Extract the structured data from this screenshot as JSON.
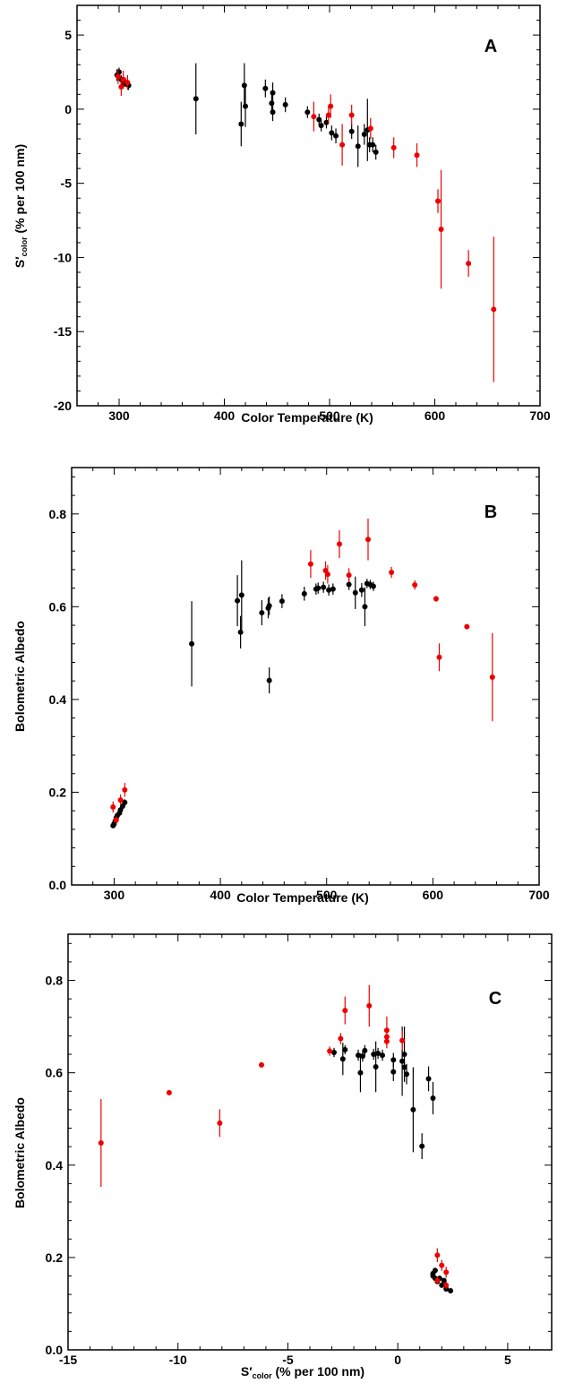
{
  "chart_data": [
    {
      "type": "scatter",
      "panel_label": "A",
      "xlabel": "Color Temperature (K)",
      "ylabel_main": "S′",
      "ylabel_sub": "color",
      "ylabel_rest": " (% per 100 nm)",
      "xlim": [
        260,
        700
      ],
      "ylim": [
        -20,
        7
      ],
      "xticks": [
        300,
        400,
        500,
        600,
        700
      ],
      "xtick_labels": [
        "300",
        "400",
        "500",
        "600",
        "700"
      ],
      "yticks": [
        -20,
        -15,
        -10,
        -5,
        0,
        5
      ],
      "ytick_labels": [
        "-20",
        "-15",
        "-10",
        "-5",
        "0",
        "5"
      ],
      "series": [
        {
          "color": "#000000",
          "points": [
            {
              "x": 298,
              "y": 2.3,
              "err": 0.4
            },
            {
              "x": 300,
              "y": 2.5,
              "err": 0.3
            },
            {
              "x": 302,
              "y": 2.0,
              "err": 0.3
            },
            {
              "x": 304,
              "y": 1.7,
              "err": 0.3
            },
            {
              "x": 306,
              "y": 1.8,
              "err": 0.3
            },
            {
              "x": 309,
              "y": 1.6,
              "err": 0.3
            },
            {
              "x": 373,
              "y": 0.7,
              "err": 2.4
            },
            {
              "x": 416,
              "y": -1.0,
              "err": 1.5
            },
            {
              "x": 419,
              "y": 1.6,
              "err": 1.5
            },
            {
              "x": 420,
              "y": 0.2,
              "err": 1.4
            },
            {
              "x": 439,
              "y": 1.4,
              "err": 0.6
            },
            {
              "x": 445,
              "y": 0.4,
              "err": 0.6
            },
            {
              "x": 446,
              "y": 1.1,
              "err": 0.7
            },
            {
              "x": 446,
              "y": -0.2,
              "err": 0.6
            },
            {
              "x": 458,
              "y": 0.3,
              "err": 0.5
            },
            {
              "x": 479,
              "y": -0.2,
              "err": 0.4
            },
            {
              "x": 490,
              "y": -0.7,
              "err": 0.4
            },
            {
              "x": 492,
              "y": -1.1,
              "err": 0.4
            },
            {
              "x": 497,
              "y": -0.9,
              "err": 0.4
            },
            {
              "x": 502,
              "y": -1.6,
              "err": 0.5
            },
            {
              "x": 506,
              "y": -1.8,
              "err": 0.5
            },
            {
              "x": 521,
              "y": -1.5,
              "err": 0.5
            },
            {
              "x": 527,
              "y": -2.5,
              "err": 1.4
            },
            {
              "x": 533,
              "y": -1.7,
              "err": 0.7
            },
            {
              "x": 536,
              "y": -1.4,
              "err": 2.1
            },
            {
              "x": 538,
              "y": -2.4,
              "err": 0.5
            },
            {
              "x": 541,
              "y": -2.4,
              "err": 0.5
            },
            {
              "x": 544,
              "y": -2.9,
              "err": 0.5
            }
          ]
        },
        {
          "color": "#ee0000",
          "points": [
            {
              "x": 299,
              "y": 2.2,
              "err": 0.5
            },
            {
              "x": 302,
              "y": 1.5,
              "err": 0.6
            },
            {
              "x": 304,
              "y": 2.0,
              "err": 0.6
            },
            {
              "x": 308,
              "y": 1.8,
              "err": 0.5
            },
            {
              "x": 485,
              "y": -0.5,
              "err": 1.0
            },
            {
              "x": 499,
              "y": -0.4,
              "err": 0.6
            },
            {
              "x": 501,
              "y": 0.2,
              "err": 0.8
            },
            {
              "x": 512,
              "y": -2.4,
              "err": 1.4
            },
            {
              "x": 521,
              "y": -0.4,
              "err": 0.7
            },
            {
              "x": 539,
              "y": -1.3,
              "err": 0.7
            },
            {
              "x": 561,
              "y": -2.6,
              "err": 0.7
            },
            {
              "x": 583,
              "y": -3.1,
              "err": 0.8
            },
            {
              "x": 603,
              "y": -6.2,
              "err": 0.8
            },
            {
              "x": 606,
              "y": -8.1,
              "err": 4.0
            },
            {
              "x": 632,
              "y": -10.4,
              "err": 0.9
            },
            {
              "x": 656,
              "y": -13.5,
              "err": 4.9
            }
          ]
        }
      ]
    },
    {
      "type": "scatter",
      "panel_label": "B",
      "xlabel": "Color Temperature (K)",
      "ylabel": "Bolometric Albedo",
      "xlim": [
        260,
        700
      ],
      "ylim": [
        0,
        0.9
      ],
      "xticks": [
        300,
        400,
        500,
        600,
        700
      ],
      "xtick_labels": [
        "300",
        "400",
        "500",
        "600",
        "700"
      ],
      "yticks": [
        0,
        0.2,
        0.4,
        0.6,
        0.8
      ],
      "ytick_labels": [
        "0.0",
        "0.2",
        "0.4",
        "0.6",
        "0.8"
      ],
      "series": [
        {
          "color": "#000000",
          "points": [
            {
              "x": 299,
              "y": 0.128,
              "err": 0.005
            },
            {
              "x": 300,
              "y": 0.132,
              "err": 0.005
            },
            {
              "x": 301,
              "y": 0.138,
              "err": 0.005
            },
            {
              "x": 302,
              "y": 0.145,
              "err": 0.005
            },
            {
              "x": 303,
              "y": 0.15,
              "err": 0.005
            },
            {
              "x": 305,
              "y": 0.155,
              "err": 0.005
            },
            {
              "x": 306,
              "y": 0.162,
              "err": 0.006
            },
            {
              "x": 308,
              "y": 0.17,
              "err": 0.006
            },
            {
              "x": 310,
              "y": 0.178,
              "err": 0.007
            },
            {
              "x": 373,
              "y": 0.52,
              "err": 0.092
            },
            {
              "x": 416,
              "y": 0.613,
              "err": 0.055
            },
            {
              "x": 419,
              "y": 0.545,
              "err": 0.035
            },
            {
              "x": 420,
              "y": 0.625,
              "err": 0.075
            },
            {
              "x": 439,
              "y": 0.587,
              "err": 0.027
            },
            {
              "x": 445,
              "y": 0.597,
              "err": 0.022
            },
            {
              "x": 446,
              "y": 0.441,
              "err": 0.028
            },
            {
              "x": 446,
              "y": 0.602,
              "err": 0.02
            },
            {
              "x": 458,
              "y": 0.612,
              "err": 0.015
            },
            {
              "x": 479,
              "y": 0.628,
              "err": 0.015
            },
            {
              "x": 490,
              "y": 0.638,
              "err": 0.012
            },
            {
              "x": 492,
              "y": 0.64,
              "err": 0.012
            },
            {
              "x": 497,
              "y": 0.642,
              "err": 0.012
            },
            {
              "x": 502,
              "y": 0.636,
              "err": 0.012
            },
            {
              "x": 506,
              "y": 0.638,
              "err": 0.012
            },
            {
              "x": 521,
              "y": 0.648,
              "err": 0.012
            },
            {
              "x": 527,
              "y": 0.63,
              "err": 0.035
            },
            {
              "x": 533,
              "y": 0.636,
              "err": 0.015
            },
            {
              "x": 536,
              "y": 0.6,
              "err": 0.042
            },
            {
              "x": 538,
              "y": 0.65,
              "err": 0.01
            },
            {
              "x": 541,
              "y": 0.648,
              "err": 0.01
            },
            {
              "x": 544,
              "y": 0.644,
              "err": 0.01
            }
          ]
        },
        {
          "color": "#ee0000",
          "points": [
            {
              "x": 299,
              "y": 0.168,
              "err": 0.012
            },
            {
              "x": 302,
              "y": 0.14,
              "err": 0.008
            },
            {
              "x": 306,
              "y": 0.183,
              "err": 0.012
            },
            {
              "x": 310,
              "y": 0.205,
              "err": 0.015
            },
            {
              "x": 485,
              "y": 0.692,
              "err": 0.03
            },
            {
              "x": 499,
              "y": 0.678,
              "err": 0.02
            },
            {
              "x": 501,
              "y": 0.67,
              "err": 0.02
            },
            {
              "x": 512,
              "y": 0.735,
              "err": 0.03
            },
            {
              "x": 521,
              "y": 0.668,
              "err": 0.015
            },
            {
              "x": 539,
              "y": 0.745,
              "err": 0.045
            },
            {
              "x": 561,
              "y": 0.674,
              "err": 0.012
            },
            {
              "x": 583,
              "y": 0.647,
              "err": 0.01
            },
            {
              "x": 603,
              "y": 0.617,
              "err": 0.006
            },
            {
              "x": 606,
              "y": 0.491,
              "err": 0.03
            },
            {
              "x": 632,
              "y": 0.557,
              "err": 0.005
            },
            {
              "x": 656,
              "y": 0.448,
              "err": 0.095
            }
          ]
        }
      ]
    },
    {
      "type": "scatter",
      "panel_label": "C",
      "xlabel_main": "S′",
      "xlabel_sub": "color",
      "xlabel_rest": " (% per 100 nm)",
      "ylabel": "Bolometric Albedo",
      "xlim": [
        -15,
        7
      ],
      "ylim": [
        0,
        0.9
      ],
      "xticks": [
        -15,
        -10,
        -5,
        0,
        5
      ],
      "xtick_labels": [
        "-15",
        "-10",
        "-5",
        "0",
        "5"
      ],
      "yticks": [
        0,
        0.2,
        0.4,
        0.6,
        0.8
      ],
      "ytick_labels": [
        "0.0",
        "0.2",
        "0.4",
        "0.6",
        "0.8"
      ],
      "series": [
        {
          "color": "#000000",
          "points": [
            {
              "x": 2.4,
              "y": 0.128,
              "xerr": 0.1,
              "err": 0.004
            },
            {
              "x": 2.2,
              "y": 0.132,
              "xerr": 0.1,
              "err": 0.004
            },
            {
              "x": 2.0,
              "y": 0.14,
              "xerr": 0.1,
              "err": 0.004
            },
            {
              "x": 1.8,
              "y": 0.148,
              "xerr": 0.1,
              "err": 0.005
            },
            {
              "x": 1.7,
              "y": 0.155,
              "xerr": 0.1,
              "err": 0.005
            },
            {
              "x": 1.6,
              "y": 0.16,
              "xerr": 0.1,
              "err": 0.005
            },
            {
              "x": 1.6,
              "y": 0.165,
              "xerr": 0.1,
              "err": 0.006
            },
            {
              "x": 1.7,
              "y": 0.172,
              "xerr": 0.1,
              "err": 0.006
            },
            {
              "x": 1.9,
              "y": 0.155,
              "xerr": 0.1,
              "err": 0.006
            },
            {
              "x": 2.1,
              "y": 0.15,
              "xerr": 0.1,
              "err": 0.005
            },
            {
              "x": 0.7,
              "y": 0.52,
              "xerr": 0.1,
              "err": 0.092
            },
            {
              "x": -1.0,
              "y": 0.613,
              "xerr": 0.1,
              "err": 0.055
            },
            {
              "x": 1.6,
              "y": 0.545,
              "xerr": 0.1,
              "err": 0.035
            },
            {
              "x": 0.2,
              "y": 0.625,
              "xerr": 0.1,
              "err": 0.075
            },
            {
              "x": 1.4,
              "y": 0.587,
              "xerr": 0.1,
              "err": 0.027
            },
            {
              "x": 0.4,
              "y": 0.597,
              "xerr": 0.1,
              "err": 0.022
            },
            {
              "x": 1.1,
              "y": 0.441,
              "xerr": 0.1,
              "err": 0.028
            },
            {
              "x": -0.2,
              "y": 0.602,
              "xerr": 0.1,
              "err": 0.02
            },
            {
              "x": 0.3,
              "y": 0.612,
              "xerr": 0.1,
              "err": 0.015
            },
            {
              "x": -0.2,
              "y": 0.628,
              "xerr": 0.1,
              "err": 0.015
            },
            {
              "x": -0.7,
              "y": 0.638,
              "xerr": 0.1,
              "err": 0.012
            },
            {
              "x": -1.1,
              "y": 0.64,
              "xerr": 0.1,
              "err": 0.012
            },
            {
              "x": -0.9,
              "y": 0.642,
              "xerr": 0.1,
              "err": 0.012
            },
            {
              "x": -1.6,
              "y": 0.636,
              "xerr": 0.1,
              "err": 0.012
            },
            {
              "x": -1.8,
              "y": 0.638,
              "xerr": 0.1,
              "err": 0.012
            },
            {
              "x": -1.5,
              "y": 0.648,
              "xerr": 0.1,
              "err": 0.012
            },
            {
              "x": -2.5,
              "y": 0.63,
              "xerr": 0.1,
              "err": 0.035
            },
            {
              "x": -1.7,
              "y": 0.6,
              "xerr": 0.1,
              "err": 0.042
            },
            {
              "x": -2.4,
              "y": 0.65,
              "xerr": 0.1,
              "err": 0.01
            },
            {
              "x": -2.9,
              "y": 0.644,
              "xerr": 0.1,
              "err": 0.01
            },
            {
              "x": 0.3,
              "y": 0.64,
              "xerr": 0.1,
              "err": 0.06
            }
          ]
        },
        {
          "color": "#ee0000",
          "points": [
            {
              "x": 1.8,
              "y": 0.205,
              "xerr": 0.1,
              "err": 0.015
            },
            {
              "x": 2.0,
              "y": 0.183,
              "xerr": 0.1,
              "err": 0.012
            },
            {
              "x": 2.2,
              "y": 0.168,
              "xerr": 0.1,
              "err": 0.012
            },
            {
              "x": 1.8,
              "y": 0.15,
              "xerr": 0.1,
              "err": 0.008
            },
            {
              "x": 2.2,
              "y": 0.14,
              "xerr": 0.1,
              "err": 0.008
            },
            {
              "x": -0.5,
              "y": 0.692,
              "xerr": 0.1,
              "err": 0.03
            },
            {
              "x": -0.5,
              "y": 0.678,
              "xerr": 0.1,
              "err": 0.02
            },
            {
              "x": -0.5,
              "y": 0.668,
              "xerr": 0.1,
              "err": 0.015
            },
            {
              "x": -2.6,
              "y": 0.674,
              "xerr": 0.1,
              "err": 0.012
            },
            {
              "x": -2.4,
              "y": 0.735,
              "xerr": 0.1,
              "err": 0.03
            },
            {
              "x": -1.3,
              "y": 0.745,
              "xerr": 0.1,
              "err": 0.045
            },
            {
              "x": 0.2,
              "y": 0.67,
              "xerr": 0.1,
              "err": 0.02
            },
            {
              "x": -3.1,
              "y": 0.647,
              "xerr": 0.1,
              "err": 0.01
            },
            {
              "x": -6.2,
              "y": 0.617,
              "xerr": 0.1,
              "err": 0.006
            },
            {
              "x": -8.1,
              "y": 0.491,
              "xerr": 0.1,
              "err": 0.03
            },
            {
              "x": -10.4,
              "y": 0.557,
              "xerr": 0.1,
              "err": 0.005
            },
            {
              "x": -13.5,
              "y": 0.448,
              "xerr": 0.1,
              "err": 0.095
            }
          ]
        }
      ]
    }
  ]
}
